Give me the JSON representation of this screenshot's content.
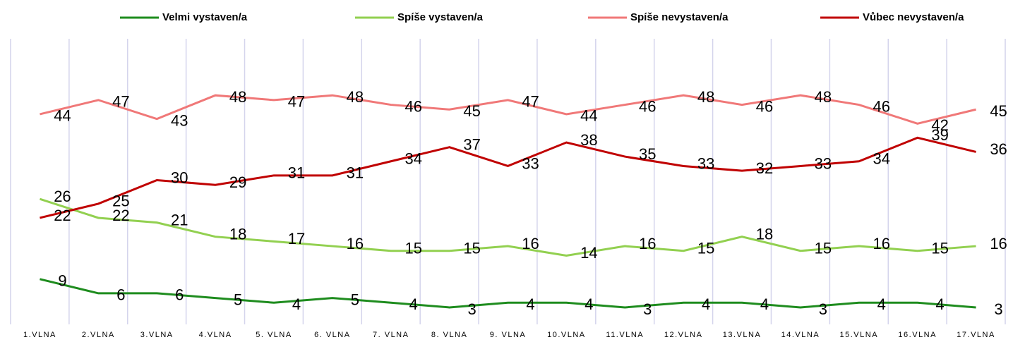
{
  "chart_data": {
    "type": "line",
    "categories": [
      "1.VLNA",
      "2.VLNA",
      "3.VLNA",
      "4.VLNA",
      "5. VLNA",
      "6. VLNA",
      "7. VLNA",
      "8. VLNA",
      "9. VLNA",
      "10.VLNA",
      "11.VLNA",
      "12.VLNA",
      "13.VLNA",
      "14.VLNA",
      "15.VLNA",
      "16.VLNA",
      "17.VLNA"
    ],
    "series": [
      {
        "name": "Velmi vystaven/a",
        "color": "#1e8c1e",
        "values": [
          9,
          6,
          6,
          5,
          4,
          5,
          4,
          3,
          4,
          4,
          3,
          4,
          4,
          3,
          4,
          4,
          3
        ]
      },
      {
        "name": "Spíše vystaven/a",
        "color": "#92d050",
        "values": [
          26,
          22,
          21,
          18,
          17,
          16,
          15,
          15,
          16,
          14,
          16,
          15,
          18,
          15,
          16,
          15,
          16
        ]
      },
      {
        "name": "Spíše nevystaven/a",
        "color": "#f07878",
        "values": [
          44,
          47,
          43,
          48,
          47,
          48,
          46,
          45,
          47,
          44,
          46,
          48,
          46,
          48,
          46,
          42,
          45
        ]
      },
      {
        "name": "Vůbec nevystaven/a",
        "color": "#c00000",
        "values": [
          22,
          25,
          30,
          29,
          31,
          31,
          34,
          37,
          33,
          38,
          35,
          33,
          32,
          33,
          34,
          39,
          36
        ]
      }
    ],
    "ylim": [
      0,
      60
    ]
  }
}
